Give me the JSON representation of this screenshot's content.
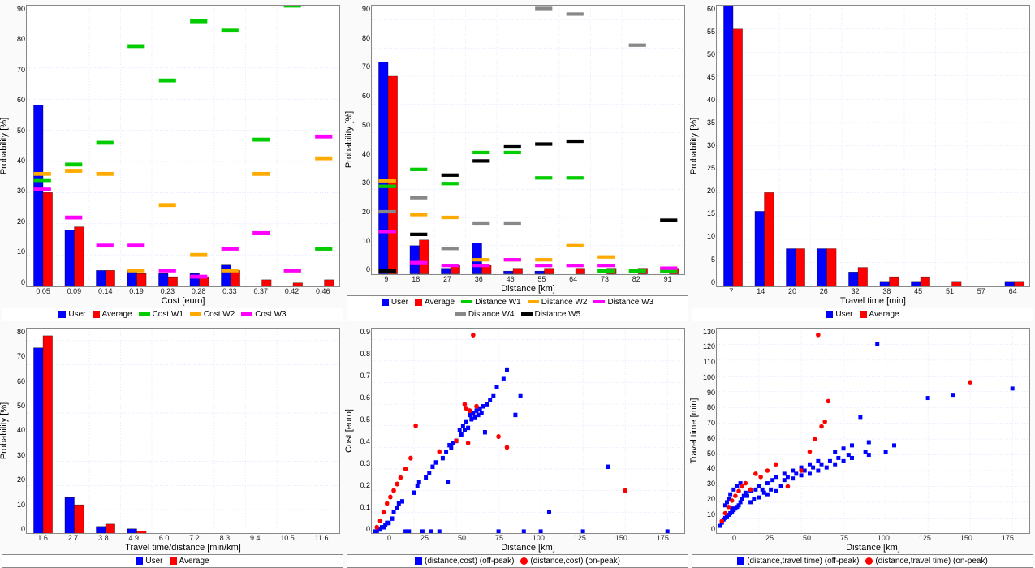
{
  "global": {
    "background": "#fafafa",
    "panel_border": "#888888",
    "grid_color": "#d0d0ff",
    "tick_fontsize": 9,
    "label_fontsize": 11
  },
  "charts": {
    "cost": {
      "type": "bar_grouped_with_floating",
      "xlabel": "Cost [euro]",
      "ylabel": "Probability [%]",
      "xticks": [
        "0.05",
        "0.09",
        "0.14",
        "0.19",
        "0.23",
        "0.28",
        "0.33",
        "0.37",
        "0.42",
        "0.46"
      ],
      "ylim": [
        0,
        90
      ],
      "ytick_step": 10,
      "bar_series": [
        {
          "name": "User",
          "color": "#0000ff",
          "values": [
            58,
            18,
            5,
            5,
            4,
            4,
            7,
            0,
            0,
            0
          ]
        },
        {
          "name": "Average",
          "color": "#ff0000",
          "values": [
            30,
            19,
            5,
            4,
            3,
            3,
            5,
            2,
            1,
            2
          ]
        }
      ],
      "dash_series": [
        {
          "name": "Cost W1",
          "color": "#00cc00",
          "values": [
            34,
            39,
            46,
            77,
            66,
            85,
            82,
            47,
            90,
            12
          ]
        },
        {
          "name": "Cost W2",
          "color": "#ffaa00",
          "values": [
            36,
            37,
            36,
            5,
            26,
            10,
            5,
            36,
            5,
            41
          ]
        },
        {
          "name": "Cost W3",
          "color": "#ff00ff",
          "values": [
            31,
            22,
            13,
            13,
            5,
            3,
            12,
            17,
            5,
            48
          ]
        }
      ]
    },
    "distance": {
      "type": "bar_grouped_with_floating",
      "xlabel": "Distance [km]",
      "ylabel": "Probability [%]",
      "xticks": [
        "9",
        "18",
        "27",
        "36",
        "46",
        "55",
        "64",
        "73",
        "82",
        "91"
      ],
      "ylim": [
        0,
        95
      ],
      "ytick_step": 10,
      "bar_series": [
        {
          "name": "User",
          "color": "#0000ff",
          "values": [
            75,
            10,
            2,
            11,
            1,
            1,
            0,
            0,
            0,
            0
          ]
        },
        {
          "name": "Average",
          "color": "#ff0000",
          "values": [
            70,
            12,
            3,
            3,
            2,
            2,
            2,
            2,
            2,
            2
          ]
        }
      ],
      "dash_series": [
        {
          "name": "Distance W1",
          "color": "#00cc00",
          "values": [
            31,
            37,
            32,
            43,
            43,
            34,
            34,
            1,
            1,
            1
          ]
        },
        {
          "name": "Distance W2",
          "color": "#ffaa00",
          "values": [
            33,
            21,
            20,
            5,
            5,
            5,
            10,
            6,
            0,
            0
          ]
        },
        {
          "name": "Distance W3",
          "color": "#ff00ff",
          "values": [
            15,
            4,
            3,
            3,
            5,
            3,
            3,
            3,
            0,
            2
          ]
        },
        {
          "name": "Distance W4",
          "color": "#888888",
          "values": [
            22,
            27,
            9,
            18,
            18,
            94,
            92,
            0,
            81,
            0
          ]
        },
        {
          "name": "Distance W5",
          "color": "#000000",
          "values": [
            1,
            14,
            35,
            40,
            45,
            46,
            47,
            0,
            0,
            19
          ]
        }
      ]
    },
    "traveltime": {
      "type": "bar_grouped",
      "xlabel": "Travel time [min]",
      "ylabel": "Probability [%]",
      "xticks": [
        "7",
        "14",
        "20",
        "26",
        "32",
        "38",
        "45",
        "51",
        "57",
        "64"
      ],
      "ylim": [
        0,
        60
      ],
      "ytick_step": 5,
      "bar_series": [
        {
          "name": "User",
          "color": "#0000ff",
          "values": [
            61,
            16,
            8,
            8,
            3,
            1,
            1,
            0,
            0,
            1
          ]
        },
        {
          "name": "Average",
          "color": "#ff0000",
          "values": [
            55,
            20,
            8,
            8,
            4,
            2,
            2,
            1,
            0,
            1
          ]
        }
      ]
    },
    "tt_per_dist": {
      "type": "bar_grouped",
      "xlabel": "Travel time/distance [min/km]",
      "ylabel": "Probability [%]",
      "xticks": [
        "1.6",
        "2.7",
        "3.8",
        "4.9",
        "6.0",
        "7.2",
        "8.3",
        "9.4",
        "10.5",
        "11.6"
      ],
      "ylim": [
        0,
        85
      ],
      "ytick_step": 10,
      "bar_series": [
        {
          "name": "User",
          "color": "#0000ff",
          "values": [
            77,
            15,
            3,
            2,
            0,
            0,
            0,
            0,
            0,
            0
          ]
        },
        {
          "name": "Average",
          "color": "#ff0000",
          "values": [
            82,
            12,
            4,
            1,
            0,
            0,
            0,
            0,
            0,
            0
          ]
        }
      ]
    },
    "scatter_cost": {
      "type": "scatter",
      "xlabel": "Distance [km]",
      "ylabel": "Cost [euro]",
      "xlim": [
        0,
        185
      ],
      "xtick_step": 25,
      "ylim": [
        0,
        0.95
      ],
      "ytick_step": 0.1,
      "series": [
        {
          "name": "(distance,cost) (off-peak)",
          "color": "#0000ff",
          "marker": "square",
          "points": [
            [
              2,
              0.01
            ],
            [
              3,
              0.01
            ],
            [
              4,
              0.02
            ],
            [
              5,
              0.02
            ],
            [
              6,
              0.03
            ],
            [
              7,
              0.03
            ],
            [
              8,
              0.04
            ],
            [
              9,
              0.05
            ],
            [
              10,
              0.05
            ],
            [
              12,
              0.07
            ],
            [
              13,
              0.1
            ],
            [
              15,
              0.12
            ],
            [
              16,
              0.14
            ],
            [
              18,
              0.15
            ],
            [
              20,
              0.01
            ],
            [
              22,
              0.01
            ],
            [
              25,
              0.19
            ],
            [
              27,
              0.22
            ],
            [
              28,
              0.24
            ],
            [
              30,
              0.01
            ],
            [
              32,
              0.26
            ],
            [
              34,
              0.28
            ],
            [
              35,
              0.01
            ],
            [
              36,
              0.31
            ],
            [
              38,
              0.33
            ],
            [
              40,
              0.01
            ],
            [
              42,
              0.35
            ],
            [
              44,
              0.38
            ],
            [
              45,
              0.24
            ],
            [
              46,
              0.41
            ],
            [
              47,
              0.4
            ],
            [
              48,
              0.42
            ],
            [
              50,
              0.43
            ],
            [
              52,
              0.48
            ],
            [
              53,
              0.46
            ],
            [
              54,
              0.5
            ],
            [
              55,
              0.48
            ],
            [
              56,
              0.52
            ],
            [
              57,
              0.49
            ],
            [
              58,
              0.55
            ],
            [
              59,
              0.53
            ],
            [
              60,
              0.56
            ],
            [
              61,
              0.54
            ],
            [
              62,
              0.57
            ],
            [
              63,
              0.55
            ],
            [
              64,
              0.58
            ],
            [
              65,
              0.56
            ],
            [
              66,
              0.59
            ],
            [
              67,
              0.47
            ],
            [
              68,
              0.6
            ],
            [
              70,
              0.62
            ],
            [
              72,
              0.64
            ],
            [
              74,
              0.68
            ],
            [
              75,
              0.01
            ],
            [
              78,
              0.72
            ],
            [
              80,
              0.76
            ],
            [
              85,
              0.55
            ],
            [
              88,
              0.64
            ],
            [
              90,
              0.01
            ],
            [
              100,
              0.01
            ],
            [
              105,
              0.1
            ],
            [
              125,
              0.01
            ],
            [
              140,
              0.31
            ],
            [
              175,
              0.01
            ]
          ]
        },
        {
          "name": "(distance,cost) (on-peak)",
          "color": "#ff0000",
          "marker": "circle",
          "points": [
            [
              3,
              0.03
            ],
            [
              5,
              0.06
            ],
            [
              7,
              0.1
            ],
            [
              9,
              0.14
            ],
            [
              11,
              0.17
            ],
            [
              13,
              0.2
            ],
            [
              15,
              0.23
            ],
            [
              17,
              0.26
            ],
            [
              20,
              0.3
            ],
            [
              23,
              0.35
            ],
            [
              26,
              0.5
            ],
            [
              40,
              0.38
            ],
            [
              50,
              0.43
            ],
            [
              55,
              0.6
            ],
            [
              56,
              0.58
            ],
            [
              57,
              0.42
            ],
            [
              58,
              0.57
            ],
            [
              60,
              0.92
            ],
            [
              62,
              0.59
            ],
            [
              75,
              0.45
            ],
            [
              80,
              0.4
            ],
            [
              150,
              0.2
            ]
          ]
        }
      ]
    },
    "scatter_tt": {
      "type": "scatter",
      "xlabel": "Distance [km]",
      "ylabel": "Travel time [min]",
      "xlim": [
        0,
        185
      ],
      "xtick_step": 25,
      "ylim": [
        0,
        130
      ],
      "ytick_step": 10,
      "series": [
        {
          "name": "(distance,travel time) (off-peak)",
          "color": "#0000ff",
          "marker": "square",
          "points": [
            [
              2,
              5
            ],
            [
              3,
              7
            ],
            [
              4,
              9
            ],
            [
              5,
              10
            ],
            [
              5,
              18
            ],
            [
              6,
              11
            ],
            [
              6,
              20
            ],
            [
              7,
              12
            ],
            [
              7,
              22
            ],
            [
              8,
              13
            ],
            [
              8,
              25
            ],
            [
              9,
              14
            ],
            [
              9,
              16
            ],
            [
              10,
              15
            ],
            [
              10,
              28
            ],
            [
              11,
              16
            ],
            [
              12,
              17
            ],
            [
              12,
              30
            ],
            [
              13,
              18
            ],
            [
              14,
              20
            ],
            [
              14,
              32
            ],
            [
              15,
              22
            ],
            [
              16,
              24
            ],
            [
              17,
              26
            ],
            [
              18,
              24
            ],
            [
              20,
              20
            ],
            [
              20,
              27
            ],
            [
              22,
              22
            ],
            [
              23,
              28
            ],
            [
              25,
              23
            ],
            [
              25,
              30
            ],
            [
              27,
              28
            ],
            [
              28,
              26
            ],
            [
              30,
              25
            ],
            [
              30,
              32
            ],
            [
              32,
              28
            ],
            [
              33,
              34
            ],
            [
              35,
              27
            ],
            [
              35,
              36
            ],
            [
              38,
              30
            ],
            [
              40,
              34
            ],
            [
              40,
              38
            ],
            [
              42,
              36
            ],
            [
              45,
              35
            ],
            [
              45,
              40
            ],
            [
              47,
              38
            ],
            [
              50,
              37
            ],
            [
              50,
              42
            ],
            [
              52,
              40
            ],
            [
              55,
              38
            ],
            [
              55,
              44
            ],
            [
              57,
              42
            ],
            [
              60,
              40
            ],
            [
              60,
              46
            ],
            [
              62,
              44
            ],
            [
              65,
              42
            ],
            [
              67,
              46
            ],
            [
              70,
              44
            ],
            [
              70,
              52
            ],
            [
              72,
              48
            ],
            [
              75,
              46
            ],
            [
              75,
              54
            ],
            [
              78,
              50
            ],
            [
              80,
              48
            ],
            [
              80,
              56
            ],
            [
              85,
              74
            ],
            [
              88,
              52
            ],
            [
              90,
              50
            ],
            [
              90,
              58
            ],
            [
              95,
              120
            ],
            [
              100,
              52
            ],
            [
              105,
              56
            ],
            [
              125,
              86
            ],
            [
              140,
              88
            ],
            [
              175,
              92
            ]
          ]
        },
        {
          "name": "(distance,travel time) (on-peak)",
          "color": "#ff0000",
          "marker": "circle",
          "points": [
            [
              3,
              8
            ],
            [
              5,
              13
            ],
            [
              7,
              17
            ],
            [
              9,
              21
            ],
            [
              11,
              24
            ],
            [
              13,
              27
            ],
            [
              15,
              30
            ],
            [
              17,
              32
            ],
            [
              20,
              28
            ],
            [
              23,
              38
            ],
            [
              26,
              36
            ],
            [
              30,
              40
            ],
            [
              35,
              44
            ],
            [
              42,
              30
            ],
            [
              50,
              40
            ],
            [
              55,
              52
            ],
            [
              58,
              60
            ],
            [
              60,
              126
            ],
            [
              62,
              68
            ],
            [
              64,
              71
            ],
            [
              66,
              84
            ],
            [
              150,
              96
            ]
          ]
        }
      ]
    }
  }
}
